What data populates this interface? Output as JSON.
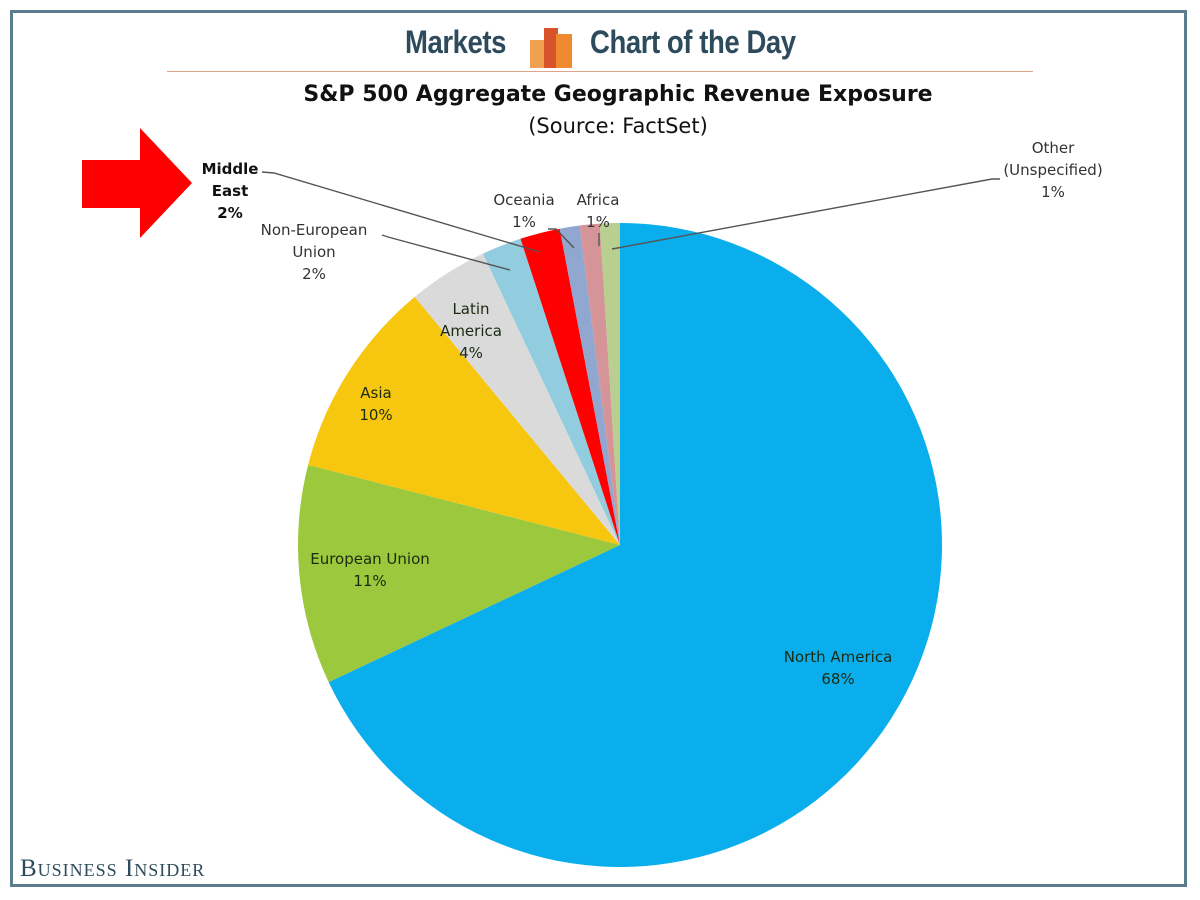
{
  "header": {
    "left_text": "Markets",
    "right_text": "Chart of the Day",
    "logo_icon": "bar-chart-logo-icon"
  },
  "branding": {
    "footer_text": "Business Insider"
  },
  "colors": {
    "frame": "#5a7d8f",
    "header_text": "#2d4b5c",
    "rule": "#e0a48b",
    "arrow": "#ff0000",
    "leader": "#555555"
  },
  "annotation": {
    "type": "arrow",
    "points_to": "Middle East",
    "color": "#ff0000"
  },
  "chart_data": {
    "type": "pie",
    "title": "S&P 500 Aggregate Geographic Revenue Exposure",
    "subtitle": "(Source: FactSet)",
    "start_angle": "12 o'clock",
    "direction": "clockwise",
    "slices": [
      {
        "name": "North America",
        "label_lines": [
          "North America",
          "68%"
        ],
        "value": 68,
        "color": "#0aaeec",
        "label_pos": "inside"
      },
      {
        "name": "European Union",
        "label_lines": [
          "European Union",
          "11%"
        ],
        "value": 11,
        "color": "#9bc83c",
        "label_pos": "inside"
      },
      {
        "name": "Asia",
        "label_lines": [
          "Asia",
          "10%"
        ],
        "value": 10,
        "color": "#f7c60f",
        "label_pos": "inside"
      },
      {
        "name": "Latin America",
        "label_lines": [
          "Latin",
          "America",
          "4%"
        ],
        "value": 4,
        "color": "#dadada",
        "label_pos": "inside"
      },
      {
        "name": "Non-European Union",
        "label_lines": [
          "Non-European",
          "Union",
          "2%"
        ],
        "value": 2,
        "color": "#92cddf",
        "label_pos": "outside"
      },
      {
        "name": "Middle East",
        "label_lines": [
          "Middle",
          "East",
          "2%"
        ],
        "value": 2,
        "color": "#ff0000",
        "label_pos": "outside",
        "highlight": true
      },
      {
        "name": "Oceania",
        "label_lines": [
          "Oceania",
          "1%"
        ],
        "value": 1,
        "color": "#91a7d0",
        "label_pos": "outside"
      },
      {
        "name": "Africa",
        "label_lines": [
          "Africa",
          "1%"
        ],
        "value": 1,
        "color": "#d59497",
        "label_pos": "outside"
      },
      {
        "name": "Other (Unspecified)",
        "label_lines": [
          "Other",
          "(Unspecified)",
          "1%"
        ],
        "value": 1,
        "color": "#b8cf8f",
        "label_pos": "outside"
      }
    ],
    "legend": "none"
  }
}
